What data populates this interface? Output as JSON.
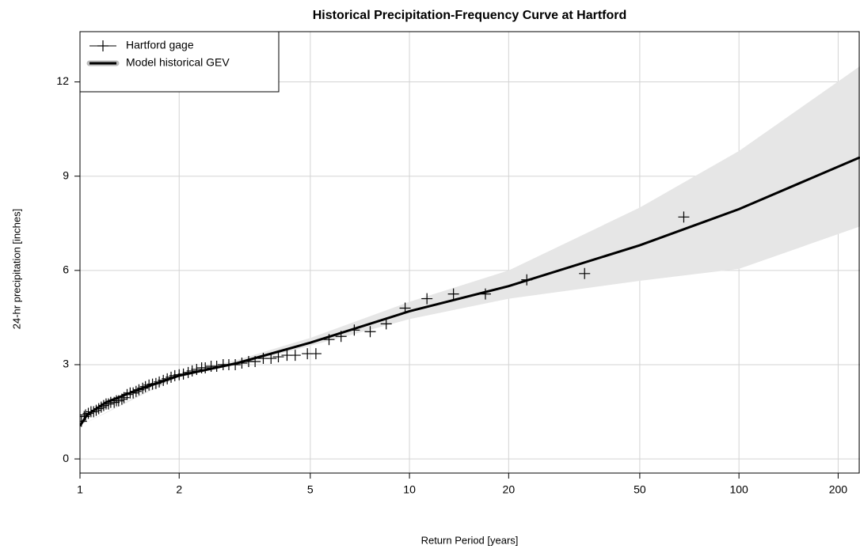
{
  "chart_data": {
    "type": "line",
    "title": "Historical Precipitation-Frequency Curve at Hartford",
    "xlabel": "Return Period [years]",
    "ylabel": "24-hr precipitation [inches]",
    "xlog": true,
    "xlim": [
      1,
      233
    ],
    "ylim": [
      -0.45,
      13.6
    ],
    "xticks": [
      1,
      2,
      5,
      10,
      20,
      50,
      100,
      200
    ],
    "yticks": [
      0,
      3,
      6,
      9,
      12
    ],
    "grid": true,
    "legend": "top-left",
    "band": {
      "color": "#e6e6e6",
      "x": [
        1,
        2,
        3,
        5,
        10,
        20,
        50,
        100,
        233
      ],
      "lower": [
        1.05,
        2.62,
        3.0,
        3.6,
        4.45,
        5.1,
        5.67,
        6.05,
        7.4
      ],
      "upper": [
        1.05,
        2.7,
        3.15,
        3.85,
        5.0,
        6.0,
        8.0,
        9.8,
        12.5
      ]
    },
    "series": [
      {
        "name": "Hartford gage",
        "type": "scatter",
        "marker": "+",
        "color": "#000000",
        "x": [
          68,
          34,
          22.7,
          17,
          13.6,
          11.3,
          9.7,
          8.5,
          7.6,
          6.8,
          6.2,
          5.7,
          5.2,
          4.9,
          4.5,
          4.25,
          4.0,
          3.8,
          3.6,
          3.4,
          3.25,
          3.1,
          2.96,
          2.83,
          2.72,
          2.6,
          2.5,
          2.4,
          2.34,
          2.26,
          2.19,
          2.13,
          2.06,
          2.0,
          1.94,
          1.89,
          1.84,
          1.79,
          1.74,
          1.7,
          1.66,
          1.62,
          1.58,
          1.55,
          1.51,
          1.48,
          1.45,
          1.42,
          1.39,
          1.36,
          1.34,
          1.31,
          1.29,
          1.27,
          1.24,
          1.22,
          1.2,
          1.18,
          1.16,
          1.14,
          1.12,
          1.1,
          1.08,
          1.06,
          1.04,
          1.03,
          1.01
        ],
        "values": [
          7.7,
          5.9,
          5.7,
          5.25,
          5.25,
          5.1,
          4.8,
          4.3,
          4.05,
          4.1,
          3.9,
          3.8,
          3.35,
          3.35,
          3.3,
          3.3,
          3.25,
          3.2,
          3.2,
          3.1,
          3.1,
          3.05,
          3.0,
          3.0,
          3.0,
          2.95,
          2.95,
          2.9,
          2.9,
          2.85,
          2.8,
          2.75,
          2.7,
          2.68,
          2.65,
          2.6,
          2.55,
          2.5,
          2.45,
          2.4,
          2.38,
          2.35,
          2.3,
          2.25,
          2.2,
          2.15,
          2.1,
          2.1,
          2.05,
          1.95,
          1.9,
          1.85,
          1.85,
          1.8,
          1.8,
          1.75,
          1.75,
          1.7,
          1.65,
          1.6,
          1.55,
          1.5,
          1.5,
          1.45,
          1.4,
          1.35,
          1.2
        ]
      },
      {
        "name": "Model historical GEV",
        "color": "#000000",
        "x": [
          1,
          1.05,
          1.2,
          1.5,
          2,
          3,
          5,
          10,
          20,
          50,
          100,
          233
        ],
        "values": [
          1.05,
          1.4,
          1.8,
          2.2,
          2.65,
          3.05,
          3.7,
          4.7,
          5.5,
          6.8,
          7.95,
          9.6
        ]
      }
    ]
  }
}
